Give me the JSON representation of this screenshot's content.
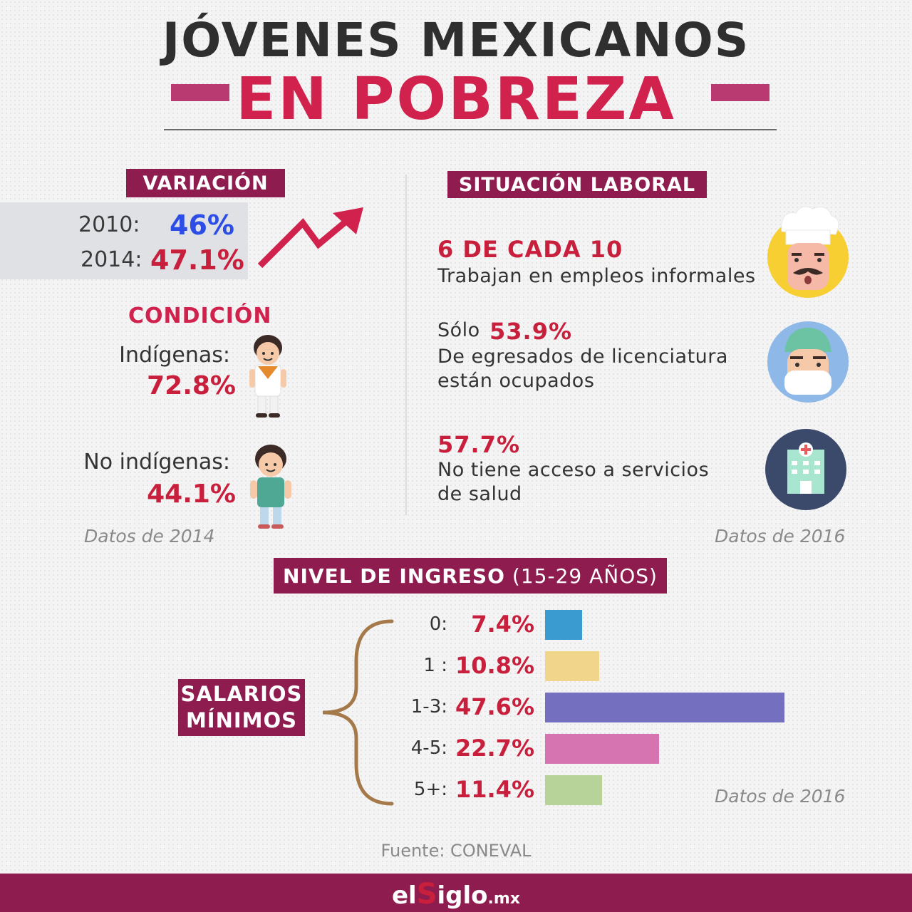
{
  "header": {
    "title_line1": "JÓVENES MEXICANOS",
    "title_line2": "EN POBREZA"
  },
  "variacion": {
    "label": "VARIACIÓN",
    "rows": [
      {
        "year": "2010:",
        "value": "46%"
      },
      {
        "year": "2014:",
        "value": "47.1%"
      }
    ]
  },
  "condicion": {
    "label": "CONDICIÓN",
    "indigenas_label": "Indígenas:",
    "indigenas_value": "72.8%",
    "no_indigenas_label": "No indígenas:",
    "no_indigenas_value": "44.1%",
    "note": "Datos de 2014"
  },
  "laboral": {
    "label": "SITUACIÓN LABORAL",
    "item1_head": "6 DE CADA 10",
    "item1_text": "Trabajan en empleos informales",
    "item2_prefix": "Sólo",
    "item2_value": "53.9%",
    "item2_line1": "De egresados de licenciatura",
    "item2_line2": "están ocupados",
    "item3_value": "57.7%",
    "item3_line1": "No tiene acceso a servicios",
    "item3_line2": "de salud",
    "note": "Datos de 2016"
  },
  "ingreso": {
    "label": "NIVEL DE INGRESO",
    "label_sub": "(15-29 AÑOS)",
    "side_line1": "SALARIOS",
    "side_line2": "MÍNIMOS",
    "note": "Datos de 2016"
  },
  "chart_data": {
    "type": "bar",
    "orientation": "horizontal",
    "categories": [
      "0:",
      "1 :",
      "1-3:",
      "4-5:",
      "5+:"
    ],
    "values": [
      7.4,
      10.8,
      47.6,
      22.7,
      11.4
    ],
    "value_labels": [
      "7.4%",
      "10.8%",
      "47.6%",
      "22.7%",
      "11.4%"
    ],
    "colors": [
      "#3a9bd0",
      "#f0d58a",
      "#7470bf",
      "#d673b1",
      "#b7d39a"
    ]
  },
  "source": "Fuente: CONEVAL",
  "logo": {
    "part1": "el",
    "part2": "S",
    "part3": "iglo",
    "part4": ".mx"
  },
  "colors": {
    "brand": "#8e1c4f",
    "accent_red": "#d1224d",
    "blue_value": "#2c4de6"
  }
}
